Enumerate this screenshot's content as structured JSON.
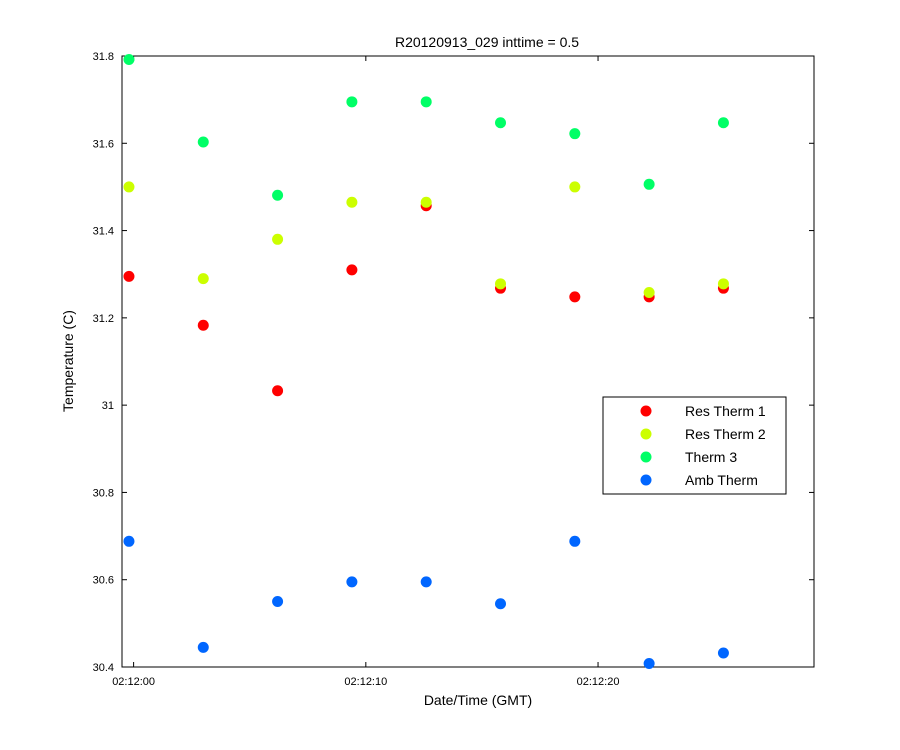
{
  "chart_data": {
    "type": "scatter",
    "title": "R20120913_029 inttime = 0.5",
    "xlabel": "Date/Time (GMT)",
    "ylabel": "Temperature (C)",
    "x_unit": "seconds after 02:12:00",
    "xlim": [
      -0.5,
      29.3
    ],
    "ylim": [
      30.4,
      31.8
    ],
    "x_ticks": [
      0,
      10,
      20
    ],
    "x_tick_labels": [
      "02:12:00",
      "02:12:10",
      "02:12:20"
    ],
    "y_ticks": [
      30.4,
      30.6,
      30.8,
      31,
      31.2,
      31.4,
      31.6,
      31.8
    ],
    "y_tick_labels": [
      "30.4",
      "30.6",
      "30.8",
      "31",
      "31.2",
      "31.4",
      "31.6",
      "31.8"
    ],
    "grid": false,
    "legend_position": "right",
    "x": [
      -0.2,
      3.0,
      6.2,
      9.4,
      12.6,
      15.8,
      19.0,
      22.2,
      25.4
    ],
    "series": [
      {
        "name": "Res Therm 1",
        "color": "#ff0000",
        "values": [
          31.295,
          31.183,
          31.033,
          31.31,
          31.457,
          31.268,
          31.248,
          31.248,
          31.268
        ]
      },
      {
        "name": "Res Therm 2",
        "color": "#ccff00",
        "values": [
          31.5,
          31.29,
          31.38,
          31.465,
          31.465,
          31.278,
          31.5,
          31.258,
          31.278
        ]
      },
      {
        "name": "Therm 3",
        "color": "#00ff66",
        "values": [
          31.792,
          31.603,
          31.481,
          31.695,
          31.695,
          31.647,
          31.622,
          31.506,
          31.647
        ]
      },
      {
        "name": "Amb Therm",
        "color": "#0066ff",
        "values": [
          30.688,
          30.445,
          30.55,
          30.595,
          30.595,
          30.545,
          30.688,
          30.408,
          30.432
        ]
      }
    ]
  }
}
